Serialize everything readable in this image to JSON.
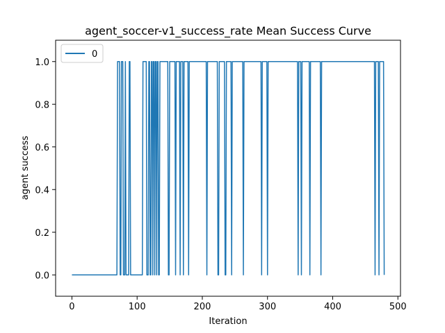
{
  "chart_data": {
    "type": "line",
    "title": "agent_soccer-v1_success_rate Mean Success Curve",
    "xlabel": "Iteration",
    "ylabel": "agent success",
    "xlim": [
      -25,
      504
    ],
    "ylim": [
      -0.1,
      1.1
    ],
    "xticks": [
      0,
      100,
      200,
      300,
      400,
      500
    ],
    "yticks": [
      0.0,
      0.2,
      0.4,
      0.6,
      0.8,
      1.0
    ],
    "xtick_labels": [
      "0",
      "100",
      "200",
      "300",
      "400",
      "500"
    ],
    "ytick_labels": [
      "0.0",
      "0.2",
      "0.4",
      "0.6",
      "0.8",
      "1.0"
    ],
    "legend_position": "top-left",
    "grid": false,
    "series": [
      {
        "name": "0",
        "color": "#1f77b4",
        "x_start": 0,
        "x_end": 479,
        "ones": [
          70,
          71,
          72,
          73,
          76,
          77,
          78,
          82,
          88,
          89,
          109,
          110,
          111,
          112,
          113,
          114,
          118,
          119,
          122,
          123,
          125,
          126,
          128,
          129,
          131,
          132,
          135,
          136,
          137,
          138,
          139,
          140,
          141,
          142,
          143,
          144,
          145,
          146,
          147,
          150,
          151,
          152,
          153,
          154,
          155,
          156,
          157,
          158,
          160,
          161,
          162,
          163,
          164,
          165,
          167,
          168,
          169,
          170,
          172,
          173,
          174,
          175,
          176,
          177,
          178,
          180,
          181,
          182,
          183,
          184,
          185,
          186,
          187,
          188,
          189,
          190,
          191,
          192,
          193,
          194,
          195,
          196,
          197,
          198,
          199,
          200,
          201,
          202,
          203,
          204,
          205,
          206,
          208,
          209,
          210,
          211,
          212,
          213,
          214,
          215,
          216,
          217,
          218,
          219,
          220,
          221,
          222,
          223,
          226,
          227,
          228,
          229,
          230,
          231,
          232,
          233,
          234,
          237,
          238,
          239,
          240,
          241,
          242,
          243,
          244,
          246,
          247,
          248,
          249,
          250,
          251,
          252,
          253,
          254,
          255,
          256,
          257,
          258,
          259,
          260,
          261,
          262,
          264,
          265,
          266,
          267,
          268,
          269,
          270,
          271,
          272,
          273,
          274,
          275,
          276,
          277,
          278,
          279,
          280,
          281,
          282,
          283,
          284,
          285,
          286,
          287,
          288,
          289,
          290,
          292,
          293,
          294,
          295,
          296,
          297,
          298,
          299,
          301,
          302,
          303,
          304,
          305,
          306,
          307,
          308,
          309,
          310,
          311,
          312,
          313,
          314,
          315,
          316,
          317,
          318,
          319,
          320,
          321,
          322,
          323,
          324,
          325,
          326,
          327,
          328,
          329,
          330,
          331,
          332,
          333,
          334,
          335,
          336,
          337,
          338,
          339,
          340,
          341,
          342,
          343,
          344,
          345,
          346,
          348,
          349,
          350,
          351,
          353,
          354,
          355,
          356,
          357,
          358,
          359,
          360,
          361,
          362,
          363,
          364,
          366,
          367,
          368,
          369,
          370,
          371,
          372,
          373,
          374,
          375,
          376,
          377,
          378,
          379,
          380,
          381,
          383,
          384,
          385,
          386,
          387,
          388,
          389,
          390,
          391,
          392,
          393,
          394,
          395,
          396,
          397,
          398,
          399,
          400,
          401,
          402,
          403,
          404,
          405,
          406,
          407,
          408,
          409,
          410,
          411,
          412,
          413,
          414,
          415,
          416,
          417,
          418,
          419,
          420,
          421,
          422,
          423,
          424,
          425,
          426,
          427,
          428,
          429,
          430,
          431,
          432,
          433,
          434,
          435,
          436,
          437,
          438,
          439,
          440,
          441,
          442,
          443,
          444,
          445,
          446,
          447,
          448,
          449,
          450,
          451,
          452,
          453,
          454,
          455,
          456,
          457,
          458,
          459,
          460,
          461,
          462,
          463,
          464,
          466,
          467,
          468,
          469,
          470,
          472,
          473,
          474,
          475,
          476,
          477,
          478
        ]
      }
    ]
  }
}
